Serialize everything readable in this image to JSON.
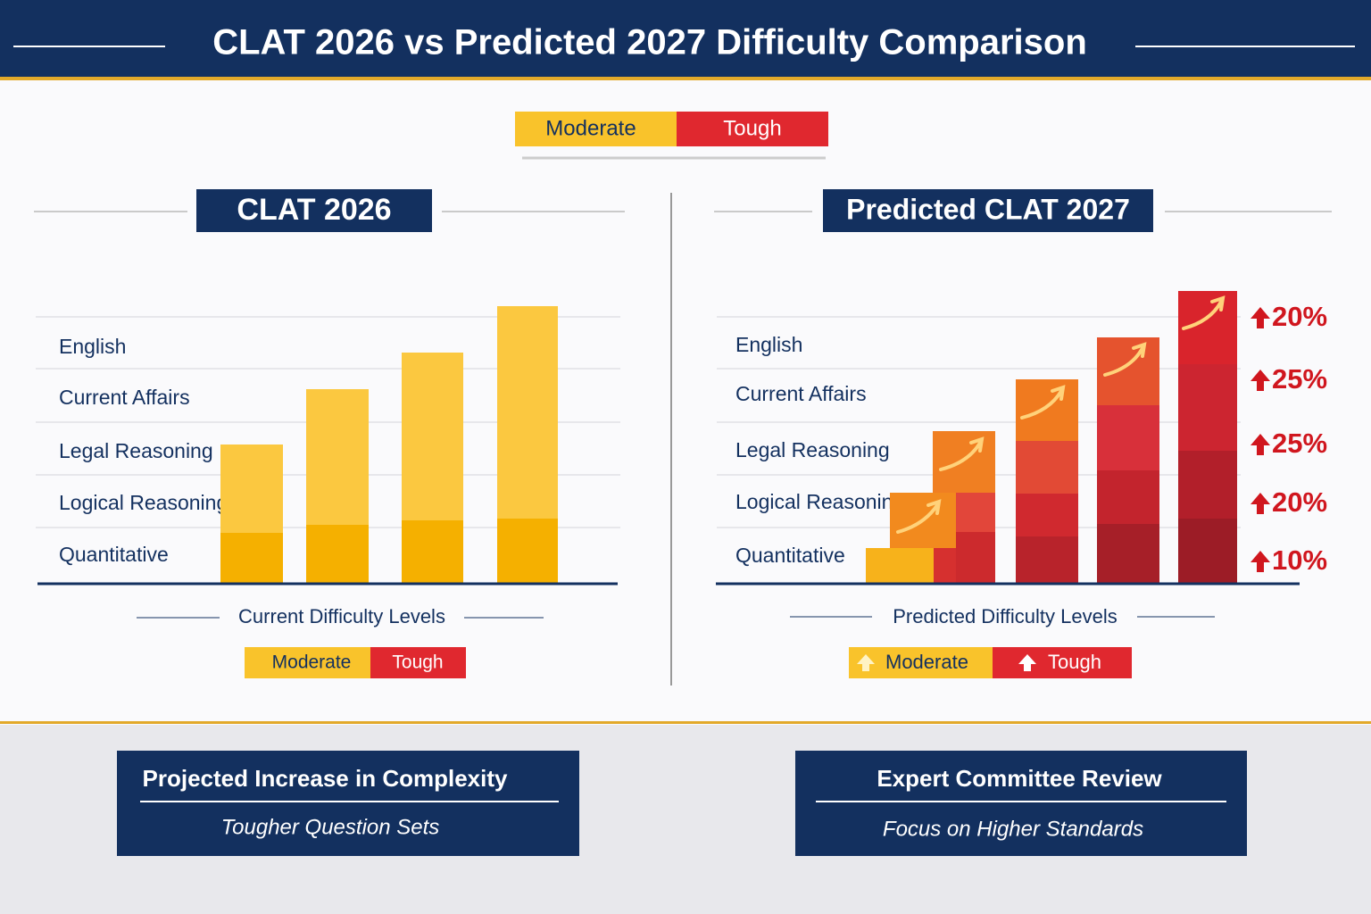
{
  "header": {
    "title": "CLAT 2026 vs Predicted 2027 Difficulty Comparison"
  },
  "legend": [
    "Moderate",
    "Tough"
  ],
  "left_panel": {
    "title": "CLAT 2026",
    "categories": [
      "English",
      "Current Affairs",
      "Legal Reasoning",
      "Logical Reasoning",
      "Quantitative"
    ],
    "caption": "Current Difficulty Levels",
    "legend": [
      "Moderate",
      "Tough"
    ]
  },
  "right_panel": {
    "title": "Predicted CLAT 2027",
    "categories": [
      "English",
      "Current Affairs",
      "Legal Reasoning",
      "Logical Reasoning",
      "Quantitative"
    ],
    "increases": [
      "20%",
      "25%",
      "25%",
      "20%",
      "10%"
    ],
    "caption": "Predicted Difficulty Levels",
    "legend": [
      "Moderate",
      "Tough"
    ]
  },
  "cards": [
    {
      "title": "Projected Increase in Complexity",
      "subtitle": "Tougher Question Sets"
    },
    {
      "title": "Expert Committee Review",
      "subtitle": "Focus on Higher Standards"
    }
  ]
}
